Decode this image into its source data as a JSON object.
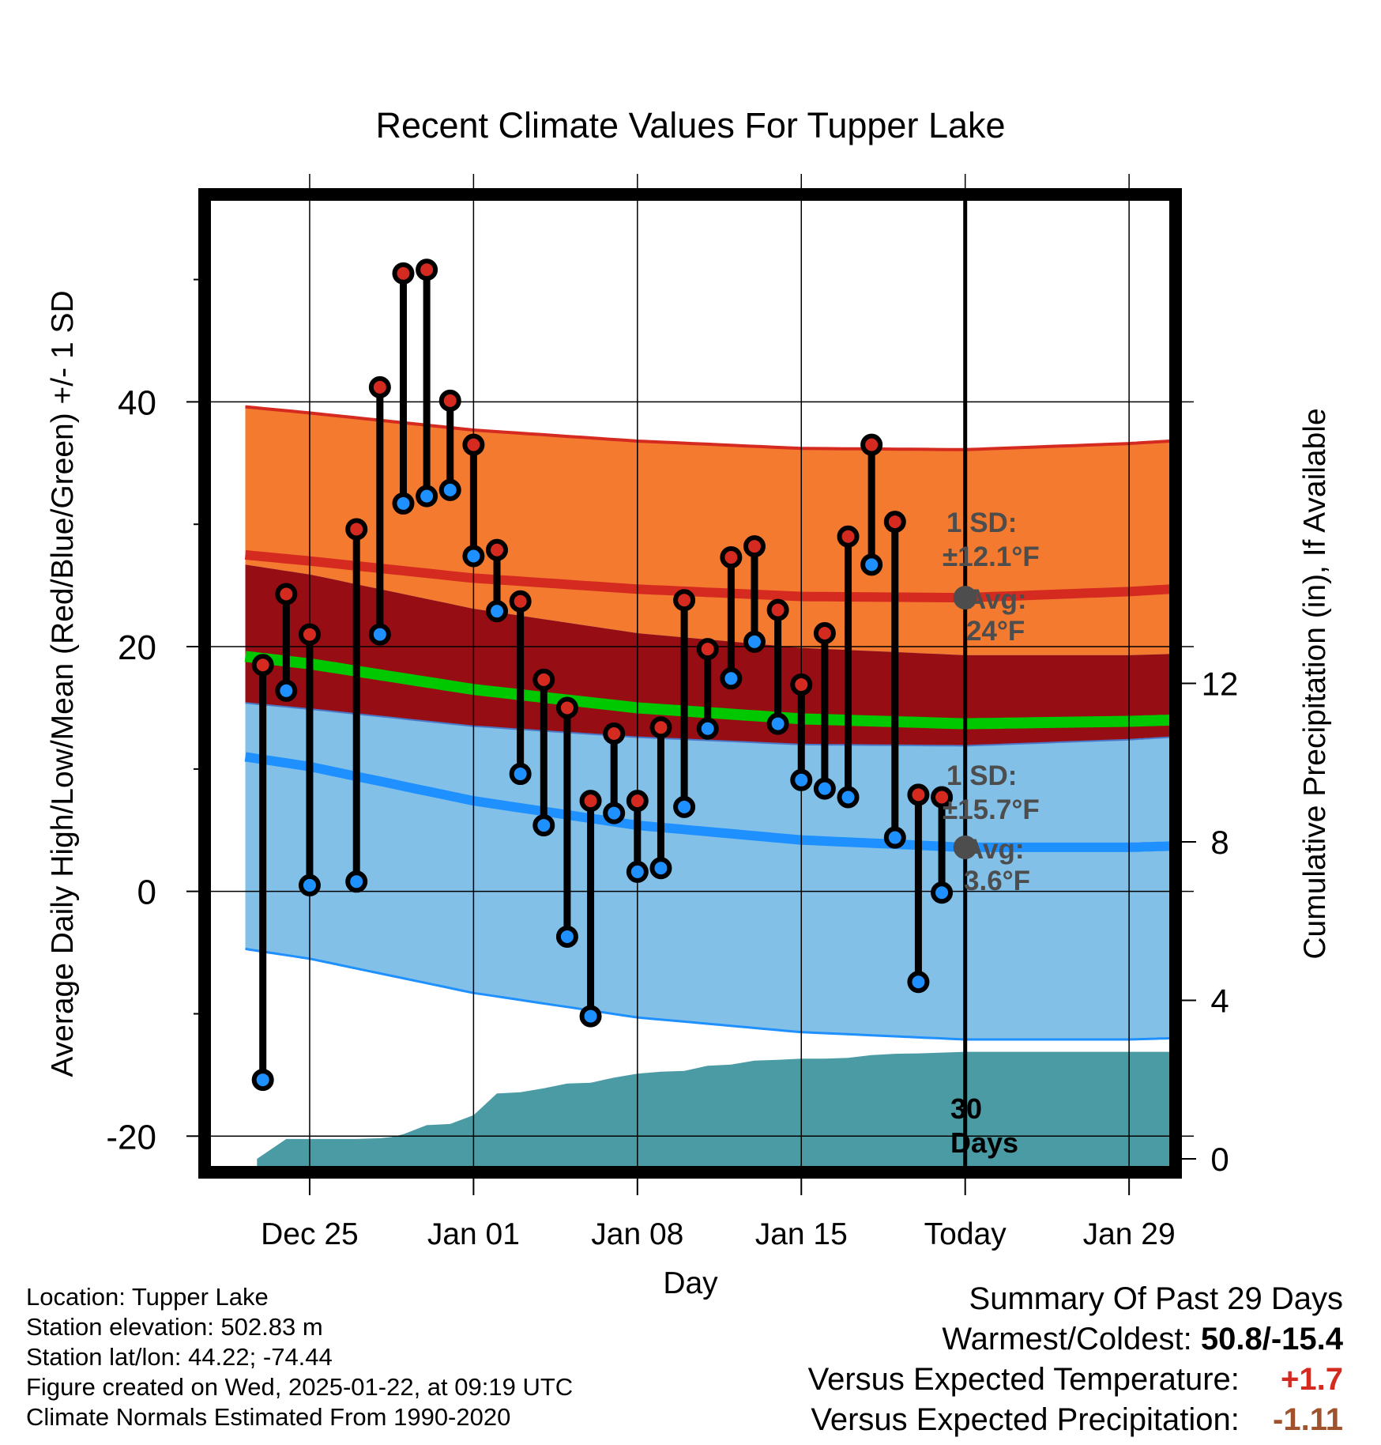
{
  "chart_data": {
    "type": "line",
    "title": "Recent Climate Values For Tupper Lake",
    "xlabel": "Day",
    "ylabel": "Average Daily High/Low/Mean (Red/Blue/Green) +/- 1 SD",
    "y2label": "Cumulative Precipitation (in), If Available",
    "ylim": [
      -22.5,
      56.5
    ],
    "y2lim": [
      -0.2,
      24.2
    ],
    "xlim": [
      -4.25,
      36.75
    ],
    "yticks": [
      -20,
      0,
      20,
      40
    ],
    "yminor": [
      -10,
      10,
      30,
      50
    ],
    "y2ticks": [
      0,
      4,
      8,
      12
    ],
    "xticks": [
      {
        "x": 0,
        "label": "Dec 25"
      },
      {
        "x": 7,
        "label": "Jan 01"
      },
      {
        "x": 14,
        "label": "Jan 08"
      },
      {
        "x": 21,
        "label": "Jan 15"
      },
      {
        "x": 28,
        "label": "Today"
      },
      {
        "x": 35,
        "label": "Jan 29"
      }
    ],
    "today_x": 28,
    "normals": {
      "x": [
        -2.75,
        0,
        7,
        14,
        21,
        28,
        35,
        36.75
      ],
      "high_avg": [
        27.5,
        27,
        25.6,
        24.7,
        24.1,
        24.0,
        24.5,
        24.7
      ],
      "high_sd": 12.1,
      "low_avg": [
        11,
        10.2,
        7.4,
        5.4,
        4.2,
        3.6,
        3.6,
        3.7
      ],
      "low_sd": 15.7,
      "mean_avg": [
        19.2,
        18.6,
        16.5,
        15.0,
        14.1,
        13.7,
        13.9,
        14.0
      ]
    },
    "observations": {
      "x": [
        -2,
        -1,
        0,
        2,
        3,
        4,
        5,
        6,
        7,
        8,
        9,
        10,
        11,
        12,
        13,
        14,
        15,
        16,
        17,
        18,
        19,
        20,
        21,
        22,
        23,
        24,
        25,
        26,
        27
      ],
      "high": [
        18.5,
        24.3,
        21.0,
        29.6,
        41.2,
        50.5,
        50.8,
        40.1,
        36.5,
        27.9,
        23.7,
        17.3,
        15.0,
        7.4,
        12.9,
        7.4,
        13.4,
        23.8,
        19.8,
        27.3,
        28.2,
        23.0,
        16.9,
        21.1,
        29.0,
        36.5,
        30.2,
        7.9,
        7.7
      ],
      "low": [
        -15.4,
        16.4,
        0.5,
        0.8,
        21.0,
        31.7,
        32.3,
        32.8,
        27.4,
        22.9,
        9.6,
        5.4,
        -3.7,
        -10.2,
        6.4,
        1.6,
        1.9,
        6.9,
        13.3,
        17.4,
        20.4,
        13.7,
        9.1,
        8.4,
        7.7,
        26.7,
        4.4,
        -7.4,
        -0.1
      ]
    },
    "precip": {
      "x": [
        -2.25,
        -1,
        0,
        1,
        2,
        3,
        3.5,
        4,
        5,
        6,
        7,
        8,
        9,
        10,
        11,
        12,
        13,
        14,
        15,
        16,
        17,
        18,
        19,
        20,
        21,
        22,
        23,
        24,
        25,
        26,
        27,
        28,
        36.75
      ],
      "values": [
        0,
        0.5,
        0.5,
        0.5,
        0.5,
        0.52,
        0.55,
        0.62,
        0.85,
        0.88,
        1.1,
        1.65,
        1.68,
        1.78,
        1.9,
        1.92,
        2.05,
        2.15,
        2.2,
        2.22,
        2.35,
        2.38,
        2.48,
        2.5,
        2.53,
        2.53,
        2.55,
        2.62,
        2.65,
        2.66,
        2.68,
        2.7,
        2.7
      ]
    },
    "annotations": {
      "high_sd": "±12.1°F",
      "high_avg": "24°F",
      "low_sd": "±15.7°F",
      "low_avg": "3.6°F",
      "sd_label": "1 SD:",
      "avg_label": "Avg:",
      "days_count": "30",
      "days_word": "Days"
    }
  },
  "info": {
    "location": "Location: Tupper Lake",
    "elevation": "Station elevation: 502.83 m",
    "latlon": "Station lat/lon: 44.22; -74.44",
    "created": "Figure created on Wed, 2025-01-22, at 09:19 UTC",
    "normals": "Climate Normals Estimated From 1990-2020"
  },
  "summary": {
    "title": "Summary Of Past 29 Days",
    "warm_cold_label": "Warmest/Coldest:",
    "warm_cold_value": "50.8/-15.4",
    "temp_label": "Versus Expected Temperature:",
    "temp_value": "+1.7",
    "precip_label": "Versus Expected Precipitation:",
    "precip_value": "-1.11",
    "temp_color": "#d42a20",
    "precip_color": "#a0522d"
  },
  "colors": {
    "high_band": "#f47a30",
    "high_line": "#d42a20",
    "mid_band": "#960e14",
    "mean_line": "#00c800",
    "low_band": "#82c0e8",
    "low_line": "#1e90ff",
    "precip": "#4a9ba3",
    "annot": "#4d4d4d"
  }
}
